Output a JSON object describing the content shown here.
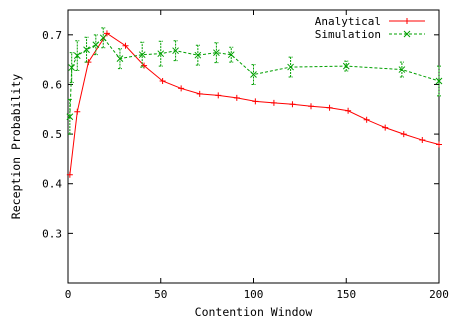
{
  "chart_data": {
    "type": "line",
    "title": "",
    "xlabel": "Contention Window",
    "ylabel": "Reception Probability",
    "xlim": [
      0,
      200
    ],
    "ylim": [
      0.2,
      0.75
    ],
    "xticks": [
      0,
      50,
      100,
      150,
      200
    ],
    "yticks": [
      0.3,
      0.4,
      0.5,
      0.6,
      0.7
    ],
    "grid": false,
    "legend_position": "top-right",
    "series": [
      {
        "name": "Analytical",
        "color": "#ff0000",
        "line_style": "solid",
        "marker": "plus",
        "x": [
          1,
          5,
          11,
          21,
          31,
          41,
          51,
          61,
          71,
          81,
          91,
          101,
          111,
          121,
          131,
          141,
          151,
          161,
          171,
          181,
          191,
          200
        ],
        "y": [
          0.418,
          0.545,
          0.645,
          0.703,
          0.678,
          0.638,
          0.607,
          0.592,
          0.581,
          0.578,
          0.573,
          0.566,
          0.563,
          0.56,
          0.556,
          0.553,
          0.547,
          0.529,
          0.513,
          0.5,
          0.488,
          0.479
        ]
      },
      {
        "name": "Simulation",
        "color": "#00a000",
        "line_style": "dashed",
        "marker": "x",
        "x": [
          1,
          2,
          5,
          10,
          15,
          19,
          28,
          40,
          50,
          58,
          70,
          80,
          88,
          100,
          120,
          150,
          180,
          200
        ],
        "y": [
          0.535,
          0.634,
          0.658,
          0.67,
          0.68,
          0.694,
          0.652,
          0.66,
          0.662,
          0.668,
          0.659,
          0.664,
          0.66,
          0.62,
          0.635,
          0.637,
          0.63,
          0.607
        ],
        "err": [
          0.035,
          0.03,
          0.03,
          0.025,
          0.02,
          0.02,
          0.02,
          0.025,
          0.025,
          0.02,
          0.02,
          0.02,
          0.015,
          0.02,
          0.02,
          0.01,
          0.015,
          0.03
        ]
      }
    ]
  }
}
